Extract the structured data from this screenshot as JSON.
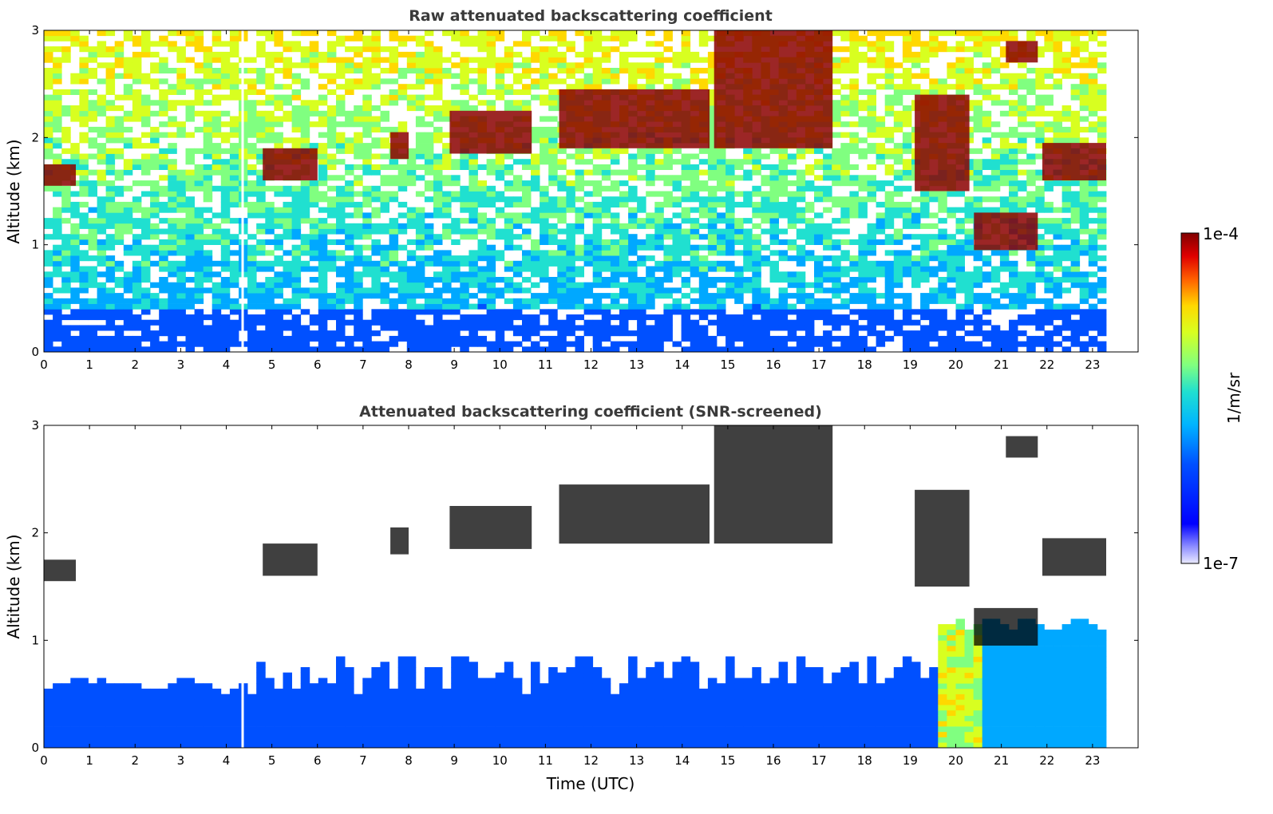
{
  "chart_data": [
    {
      "type": "heatmap",
      "title": "Raw attenuated backscattering coefficient",
      "xlabel": "",
      "ylabel": "Altitude (km)",
      "xlim": [
        0,
        24
      ],
      "ylim": [
        0,
        3
      ],
      "x_ticks": [
        "0",
        "1",
        "2",
        "3",
        "4",
        "5",
        "6",
        "7",
        "8",
        "9",
        "10",
        "11",
        "12",
        "13",
        "14",
        "15",
        "16",
        "17",
        "18",
        "19",
        "20",
        "21",
        "22",
        "23"
      ],
      "y_ticks": [
        "0",
        "1",
        "2",
        "3"
      ],
      "data_end_time": 23.3,
      "data_gap_time": 4.35,
      "cloud_layers": [
        {
          "start": 0.0,
          "end": 0.7,
          "alt_bottom": 1.55,
          "alt_top": 1.75
        },
        {
          "start": 4.8,
          "end": 6.0,
          "alt_bottom": 1.6,
          "alt_top": 1.9
        },
        {
          "start": 7.6,
          "end": 8.0,
          "alt_bottom": 1.8,
          "alt_top": 2.05
        },
        {
          "start": 8.9,
          "end": 10.7,
          "alt_bottom": 1.85,
          "alt_top": 2.25
        },
        {
          "start": 11.3,
          "end": 14.6,
          "alt_bottom": 1.9,
          "alt_top": 2.45
        },
        {
          "start": 14.7,
          "end": 17.3,
          "alt_bottom": 1.9,
          "alt_top": 3.0
        },
        {
          "start": 19.1,
          "end": 20.3,
          "alt_bottom": 1.5,
          "alt_top": 2.4
        },
        {
          "start": 20.4,
          "end": 21.8,
          "alt_bottom": 0.95,
          "alt_top": 1.3
        },
        {
          "start": 21.1,
          "end": 21.8,
          "alt_bottom": 2.7,
          "alt_top": 2.9
        },
        {
          "start": 21.9,
          "end": 23.3,
          "alt_bottom": 1.6,
          "alt_top": 1.95
        }
      ]
    },
    {
      "type": "heatmap",
      "title": "Attenuated backscattering coefficient (SNR-screened)",
      "xlabel": "Time (UTC)",
      "ylabel": "Altitude (km)",
      "xlim": [
        0,
        24
      ],
      "ylim": [
        0,
        3
      ],
      "x_ticks": [
        "0",
        "1",
        "2",
        "3",
        "4",
        "5",
        "6",
        "7",
        "8",
        "9",
        "10",
        "11",
        "12",
        "13",
        "14",
        "15",
        "16",
        "17",
        "18",
        "19",
        "20",
        "21",
        "22",
        "23"
      ],
      "y_ticks": [
        "0",
        "1",
        "2",
        "3"
      ],
      "data_end_time": 23.3,
      "data_gap_time": 4.35
    }
  ],
  "colorbar": {
    "label": "1/m/sr",
    "max_label": "1e-4",
    "min_label": "1e-7",
    "colormap": "jet",
    "scale": "log"
  },
  "colors": {
    "cloud_core": "#8b0000",
    "cloud_edge": "#ff3300",
    "low_signal": "#0000ff",
    "screened_cloud": "#000000"
  }
}
